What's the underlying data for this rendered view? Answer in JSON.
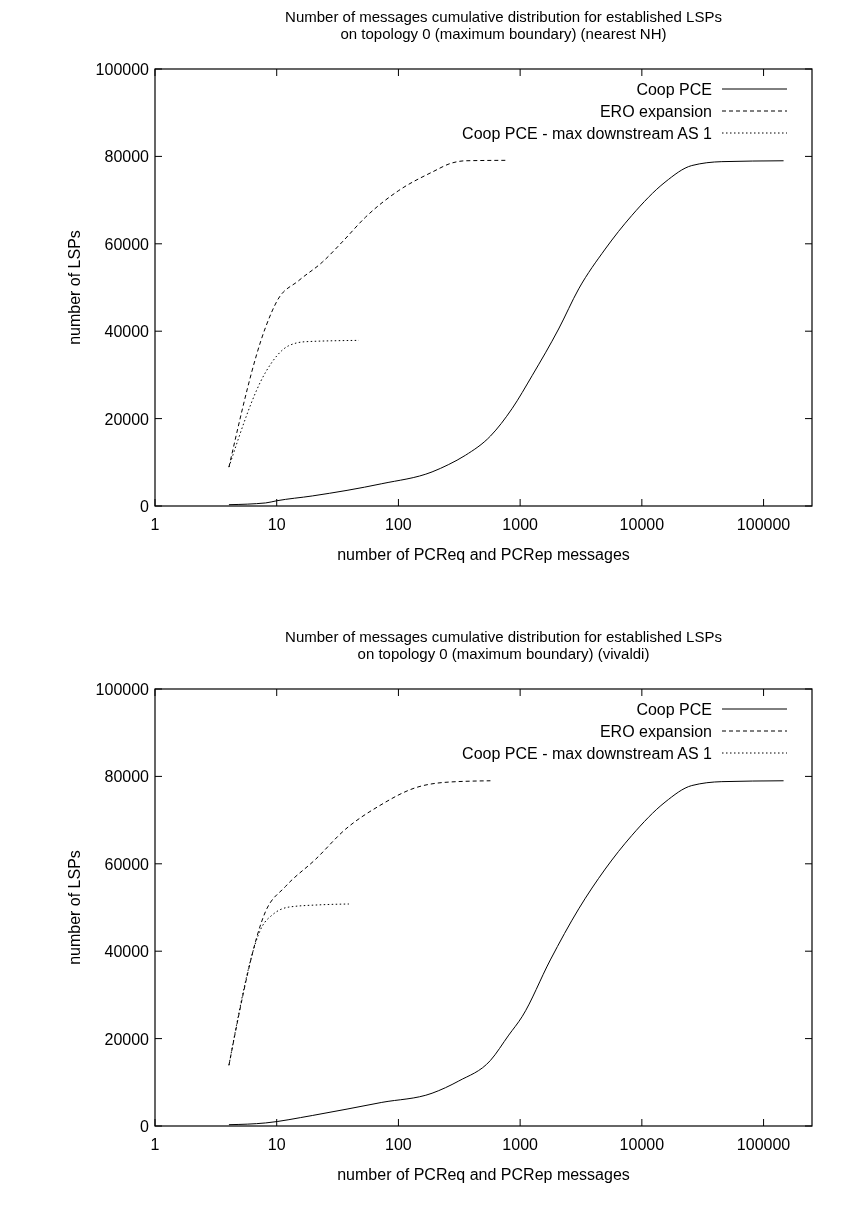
{
  "chart_data": [
    {
      "type": "line",
      "title": "Number of messages cumulative distribution for established LSPs\non topology 0 (maximum boundary) (nearest NH)",
      "xlabel": "number of PCReq and PCRep messages",
      "ylabel": "number of LSPs",
      "log": "x",
      "xlim": [
        1,
        250000
      ],
      "xticks": [
        1,
        10,
        100,
        1000,
        10000,
        100000
      ],
      "ylim": [
        0,
        100000
      ],
      "yticks": [
        0,
        20000,
        40000,
        60000,
        80000,
        100000
      ],
      "legend": "top right",
      "grid": false,
      "series": [
        {
          "name": "Coop PCE",
          "color": "#000000",
          "line_style": "solid",
          "x": [
            4.05,
            8.1,
            10,
            19.6,
            73,
            189,
            259,
            355,
            570,
            859,
            1259,
            2070,
            3030,
            5000,
            8280,
            15500,
            25700,
            45400,
            146000
          ],
          "values": [
            300,
            700,
            1200,
            2300,
            5100,
            7800,
            9500,
            11600,
            16000,
            22300,
            29900,
            40500,
            49700,
            58800,
            66500,
            74100,
            77900,
            78800,
            79000
          ]
        },
        {
          "name": "ERO expansion",
          "color": "#000000",
          "line_style": "dashed",
          "x": [
            4.05,
            8.1,
            10.1,
            15.2,
            23.7,
            34.5,
            53.7,
            100.7,
            189,
            276,
            355,
            757
          ],
          "values": [
            8900,
            40900,
            47000,
            51600,
            55800,
            60400,
            66100,
            72200,
            76400,
            78500,
            79000,
            79100
          ]
        },
        {
          "name": "Coop PCE - max downstream AS 1",
          "color": "#000000",
          "line_style": "dotted",
          "x": [
            4.05,
            8.1,
            12.6,
            17.3,
            47.3
          ],
          "values": [
            8900,
            30600,
            36700,
            37600,
            37900
          ]
        }
      ]
    },
    {
      "type": "line",
      "title": "Number of messages cumulative distribution for established LSPs\non topology 0 (maximum boundary) (vivaldi)",
      "xlabel": "number of PCReq and PCRep messages",
      "ylabel": "number of LSPs",
      "log": "x",
      "xlim": [
        1,
        250000
      ],
      "xticks": [
        1,
        10,
        100,
        1000,
        10000,
        100000
      ],
      "ylim": [
        0,
        100000
      ],
      "yticks": [
        0,
        20000,
        40000,
        60000,
        80000,
        100000
      ],
      "legend": "top right",
      "grid": false,
      "series": [
        {
          "name": "Coop PCE",
          "color": "#000000",
          "line_style": "solid",
          "x": [
            4.05,
            8.1,
            19.6,
            73,
            189,
            313,
            570,
            806,
            1037,
            1770,
            3030,
            5000,
            8280,
            15500,
            25700,
            45400,
            146000
          ],
          "values": [
            300,
            700,
            2400,
            5400,
            7500,
            10300,
            15000,
            20800,
            25000,
            38000,
            49700,
            58800,
            66500,
            74100,
            77900,
            78800,
            79000
          ]
        },
        {
          "name": "ERO expansion",
          "color": "#000000",
          "line_style": "dashed",
          "x": [
            4.05,
            8.1,
            11.8,
            20.8,
            36.7,
            69,
            138,
            259,
            570
          ],
          "values": [
            13900,
            49100,
            54800,
            61000,
            67900,
            73200,
            77400,
            78700,
            79000
          ]
        },
        {
          "name": "Coop PCE - max downstream AS 1",
          "color": "#000000",
          "line_style": "dotted",
          "x": [
            4.05,
            7.6,
            9.2,
            12.6,
            22.2,
            39.2
          ],
          "values": [
            13900,
            45700,
            48300,
            50100,
            50600,
            50800
          ]
        }
      ]
    }
  ]
}
